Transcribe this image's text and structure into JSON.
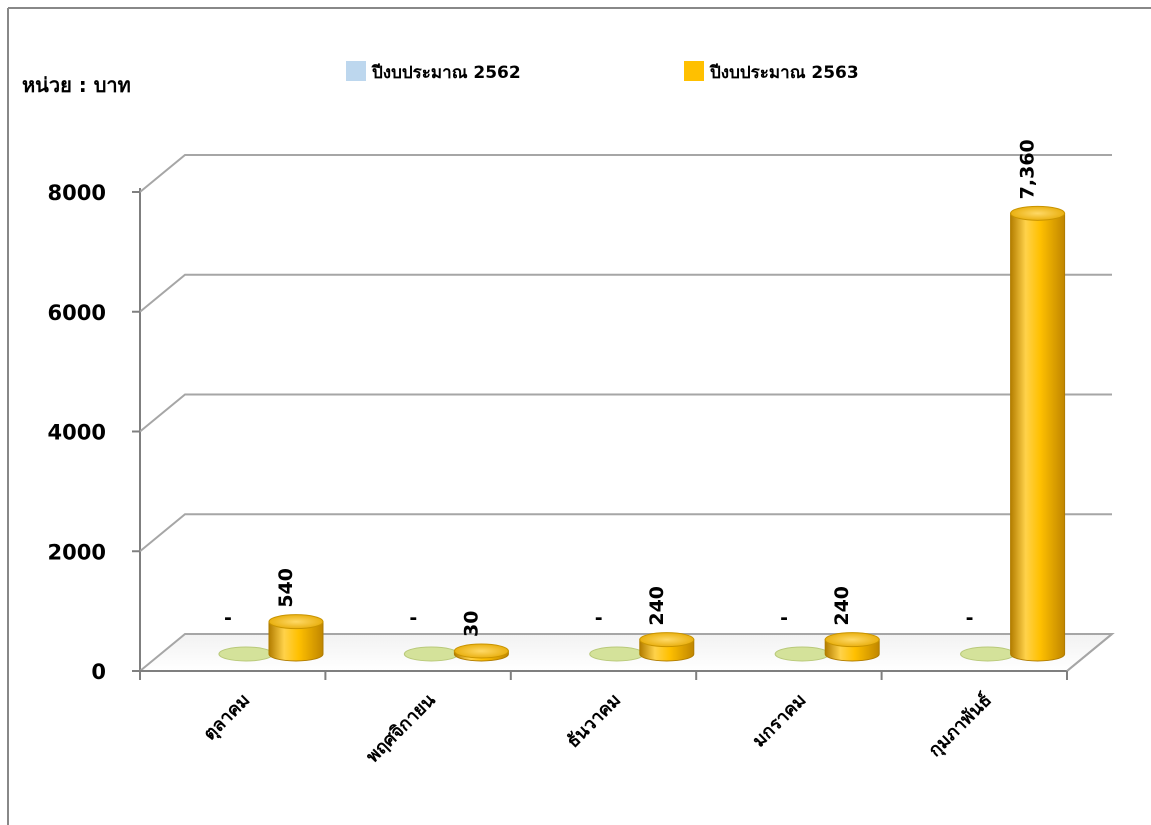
{
  "chart_data": {
    "type": "bar",
    "unit_label": "หน่วย : บาท",
    "categories": [
      "ตุลาคม",
      "พฤศจิกายน",
      "ธันวาคม",
      "มกราคม",
      "กุมภาพันธ์"
    ],
    "series": [
      {
        "name": "ปีงบประมาณ 2562",
        "values": [
          0,
          0,
          0,
          0,
          0
        ],
        "labels": [
          "-",
          "-",
          "-",
          "-",
          "-"
        ],
        "color": "#bdd7ee"
      },
      {
        "name": "ปีงบประมาณ 2563",
        "values": [
          540,
          30,
          240,
          240,
          7360
        ],
        "labels": [
          "540",
          "30",
          "240",
          "240",
          "7,360"
        ],
        "color": "#ffc000"
      }
    ],
    "y_ticks": [
      "0",
      "2000",
      "4000",
      "6000",
      "8000"
    ],
    "ylim": [
      0,
      8000
    ],
    "grid": true,
    "legend_position": "top",
    "style": "3d-cylinder",
    "colors": {
      "series_2562": "#bdd7ee",
      "series_2563": "#ffc000",
      "empty_base": "#d4e29a",
      "gridline": "#a6a6a6",
      "frame": "#7f7f7f"
    }
  }
}
